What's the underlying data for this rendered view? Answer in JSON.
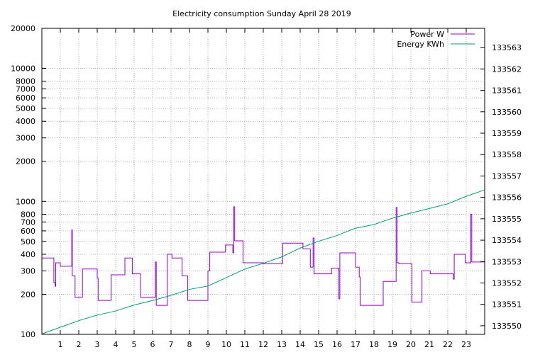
{
  "chart_data": {
    "type": "line",
    "title": "Electricity consumption Sunday April 28 2019",
    "x_ticks": [
      1,
      2,
      3,
      4,
      5,
      6,
      7,
      8,
      9,
      10,
      11,
      12,
      13,
      14,
      15,
      16,
      17,
      18,
      19,
      20,
      21,
      22,
      23
    ],
    "xlim": [
      0,
      24
    ],
    "y_left": {
      "scale": "log",
      "ylim": [
        100,
        20000
      ],
      "ticks": [
        100,
        200,
        300,
        400,
        500,
        600,
        700,
        800,
        1000,
        2000,
        3000,
        4000,
        5000,
        6000,
        7000,
        8000,
        10000,
        20000
      ]
    },
    "y_right": {
      "scale": "linear",
      "ylim": [
        133549.6,
        133563.9
      ],
      "ticks": [
        133550,
        133551,
        133552,
        133553,
        133554,
        133555,
        133556,
        133557,
        133558,
        133559,
        133560,
        133561,
        133562,
        133563
      ]
    },
    "grid": true,
    "legend_position": "top-right",
    "series": [
      {
        "name": "Power W",
        "color": "#9400d3",
        "axis": "left",
        "step": true,
        "points": [
          [
            0.0,
            375
          ],
          [
            0.65,
            375
          ],
          [
            0.65,
            245
          ],
          [
            0.72,
            230
          ],
          [
            0.75,
            345
          ],
          [
            1.0,
            345
          ],
          [
            1.0,
            325
          ],
          [
            1.6,
            325
          ],
          [
            1.62,
            610
          ],
          [
            1.65,
            275
          ],
          [
            1.8,
            275
          ],
          [
            1.8,
            190
          ],
          [
            2.2,
            190
          ],
          [
            2.2,
            310
          ],
          [
            2.95,
            310
          ],
          [
            3.0,
            265
          ],
          [
            3.05,
            180
          ],
          [
            3.75,
            180
          ],
          [
            3.75,
            280
          ],
          [
            4.5,
            280
          ],
          [
            4.5,
            375
          ],
          [
            4.9,
            375
          ],
          [
            4.9,
            285
          ],
          [
            5.3,
            285
          ],
          [
            5.35,
            190
          ],
          [
            6.1,
            190
          ],
          [
            6.15,
            350
          ],
          [
            6.2,
            165
          ],
          [
            6.8,
            165
          ],
          [
            6.8,
            400
          ],
          [
            7.05,
            400
          ],
          [
            7.05,
            375
          ],
          [
            7.6,
            375
          ],
          [
            7.6,
            275
          ],
          [
            7.9,
            275
          ],
          [
            7.9,
            180
          ],
          [
            9.0,
            180
          ],
          [
            9.0,
            300
          ],
          [
            9.1,
            415
          ],
          [
            9.95,
            415
          ],
          [
            9.95,
            470
          ],
          [
            10.3,
            470
          ],
          [
            10.35,
            410
          ],
          [
            10.4,
            910
          ],
          [
            10.45,
            505
          ],
          [
            10.9,
            505
          ],
          [
            10.9,
            345
          ],
          [
            12.0,
            345
          ],
          [
            12.0,
            340
          ],
          [
            13.0,
            340
          ],
          [
            13.05,
            485
          ],
          [
            14.15,
            485
          ],
          [
            14.15,
            440
          ],
          [
            14.5,
            440
          ],
          [
            14.55,
            320
          ],
          [
            14.7,
            530
          ],
          [
            14.75,
            285
          ],
          [
            15.7,
            285
          ],
          [
            15.7,
            315
          ],
          [
            16.0,
            315
          ],
          [
            16.1,
            185
          ],
          [
            16.15,
            410
          ],
          [
            16.9,
            410
          ],
          [
            17.0,
            320
          ],
          [
            17.2,
            270
          ],
          [
            17.25,
            165
          ],
          [
            18.5,
            165
          ],
          [
            18.5,
            250
          ],
          [
            19.15,
            250
          ],
          [
            19.2,
            900
          ],
          [
            19.25,
            345
          ],
          [
            19.35,
            340
          ],
          [
            20.0,
            340
          ],
          [
            20.05,
            175
          ],
          [
            20.6,
            175
          ],
          [
            20.6,
            300
          ],
          [
            21.0,
            300
          ],
          [
            21.05,
            285
          ],
          [
            22.3,
            285
          ],
          [
            22.3,
            260
          ],
          [
            22.35,
            400
          ],
          [
            22.9,
            400
          ],
          [
            22.95,
            345
          ],
          [
            23.15,
            345
          ],
          [
            23.25,
            800
          ],
          [
            23.3,
            350
          ],
          [
            23.9,
            350
          ],
          [
            24.0,
            205
          ]
        ]
      },
      {
        "name": "Energy KWh",
        "color": "#009e73",
        "axis": "right",
        "step": false,
        "points": [
          [
            0,
            133549.62
          ],
          [
            1,
            133549.93
          ],
          [
            2,
            133550.24
          ],
          [
            3,
            133550.5
          ],
          [
            4,
            133550.69
          ],
          [
            5,
            133550.97
          ],
          [
            6,
            133551.18
          ],
          [
            7,
            133551.42
          ],
          [
            8,
            133551.7
          ],
          [
            9,
            133551.86
          ],
          [
            10,
            133552.25
          ],
          [
            11,
            133552.65
          ],
          [
            12,
            133552.92
          ],
          [
            13,
            133553.22
          ],
          [
            14,
            133553.63
          ],
          [
            15,
            133553.95
          ],
          [
            16,
            133554.22
          ],
          [
            17,
            133554.56
          ],
          [
            18,
            133554.73
          ],
          [
            19,
            133555.03
          ],
          [
            20,
            133555.27
          ],
          [
            21,
            133555.48
          ],
          [
            22,
            133555.7
          ],
          [
            23,
            133556.05
          ],
          [
            24,
            133556.35
          ]
        ]
      }
    ]
  }
}
